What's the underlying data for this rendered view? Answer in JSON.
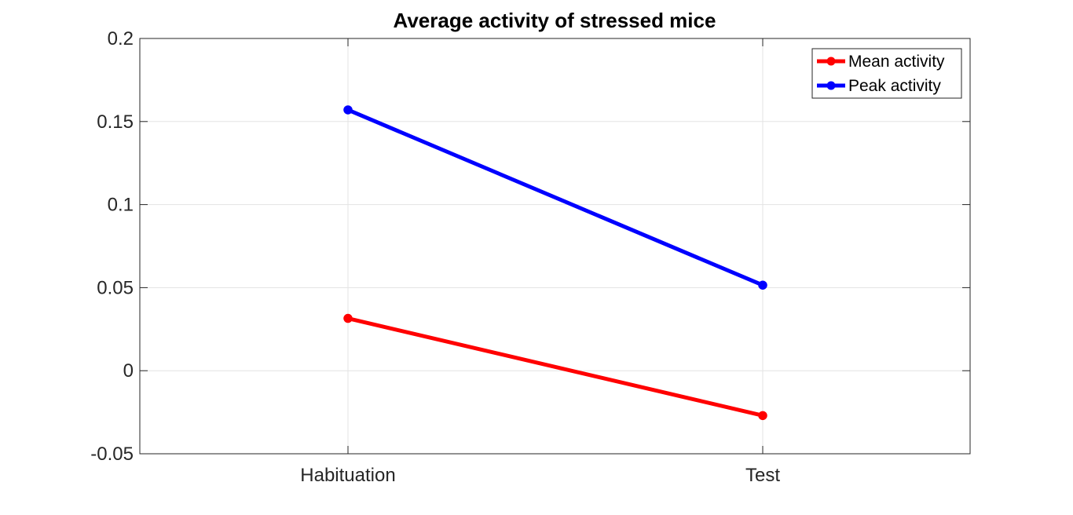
{
  "chart_data": {
    "type": "line",
    "title": "Average activity of stressed mice",
    "categories": [
      "Habituation",
      "Test"
    ],
    "series": [
      {
        "name": "Mean activity",
        "color": "#ff0000",
        "values": [
          0.0315,
          -0.027
        ]
      },
      {
        "name": "Peak activity",
        "color": "#0000ff",
        "values": [
          0.157,
          0.0515
        ]
      }
    ],
    "ylim": [
      -0.05,
      0.2
    ],
    "yticks": [
      -0.05,
      0,
      0.05,
      0.1,
      0.15,
      0.2
    ],
    "ytick_labels": [
      "-0.05",
      "0",
      "0.05",
      "0.1",
      "0.15",
      "0.2"
    ],
    "grid": true,
    "legend_position": "top-right",
    "xlabel": "",
    "ylabel": ""
  }
}
